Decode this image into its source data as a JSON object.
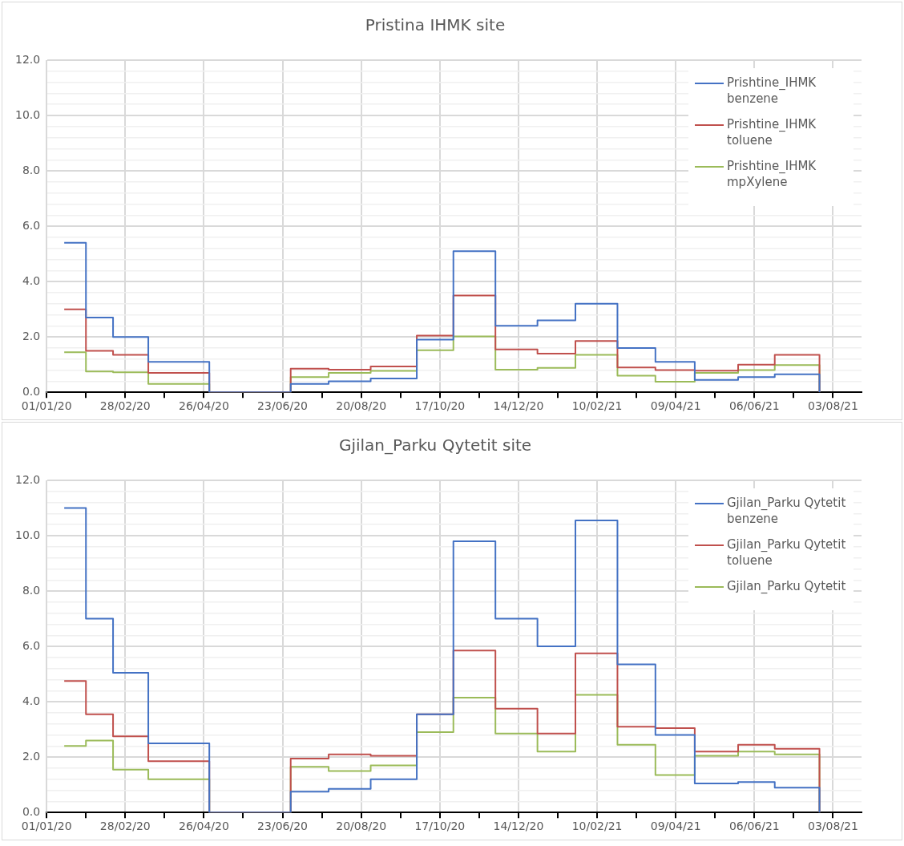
{
  "chart_data": [
    {
      "type": "step",
      "title": "Pristina IHMK site",
      "legend": "top right",
      "grid": true,
      "marker": "none",
      "x": [
        "2020-01-14",
        "2020-01-30",
        "2020-02-19",
        "2020-03-16",
        "2020-04-30",
        "2020-06-29",
        "2020-07-27",
        "2020-08-27",
        "2020-09-30",
        "2020-10-27",
        "2020-11-27",
        "2020-12-28",
        "2021-01-25",
        "2021-02-25",
        "2021-03-25",
        "2021-04-23",
        "2021-05-25",
        "2021-06-21",
        "2021-07-24"
      ],
      "series": [
        {
          "name": "Prishtine_IHMK benzene",
          "color": "#4472c4",
          "values": [
            5.4,
            2.7,
            2.0,
            1.1,
            0,
            0.3,
            0.4,
            0.5,
            1.9,
            5.1,
            2.4,
            2.6,
            3.2,
            1.6,
            1.1,
            0.45,
            0.55,
            0.65,
            0
          ]
        },
        {
          "name": "Prishtine_IHMK toluene",
          "color": "#c0504d",
          "values": [
            3.0,
            1.5,
            1.35,
            0.7,
            0,
            0.85,
            0.82,
            0.93,
            2.05,
            3.5,
            1.55,
            1.4,
            1.85,
            0.9,
            0.8,
            0.78,
            1.0,
            1.35,
            0
          ]
        },
        {
          "name": "Prishtine_IHMK mpXylene",
          "color": "#9bbb59",
          "values": [
            1.45,
            0.75,
            0.72,
            0.3,
            0,
            0.55,
            0.7,
            0.77,
            1.52,
            2.02,
            0.82,
            0.88,
            1.35,
            0.6,
            0.38,
            0.7,
            0.8,
            0.98,
            0
          ]
        }
      ],
      "xlim": [
        "2020-01-01",
        "2021-08-24"
      ],
      "xticks": [
        {
          "value": "2020-01-01",
          "label": "01/01/20"
        },
        {
          "value": "2020-01-30",
          "label": null
        },
        {
          "value": "2020-02-28",
          "label": "28/02/20"
        },
        {
          "value": "2020-03-28",
          "label": null
        },
        {
          "value": "2020-04-26",
          "label": "26/04/20"
        },
        {
          "value": "2020-05-25",
          "label": null
        },
        {
          "value": "2020-06-23",
          "label": "23/06/20"
        },
        {
          "value": "2020-07-22",
          "label": null
        },
        {
          "value": "2020-08-20",
          "label": "20/08/20"
        },
        {
          "value": "2020-09-18",
          "label": null
        },
        {
          "value": "2020-10-17",
          "label": "17/10/20"
        },
        {
          "value": "2020-11-15",
          "label": null
        },
        {
          "value": "2020-12-14",
          "label": "14/12/20"
        },
        {
          "value": "2021-01-12",
          "label": null
        },
        {
          "value": "2021-02-10",
          "label": "10/02/21"
        },
        {
          "value": "2021-03-11",
          "label": null
        },
        {
          "value": "2021-04-09",
          "label": "09/04/21"
        },
        {
          "value": "2021-05-08",
          "label": null
        },
        {
          "value": "2021-06-06",
          "label": "06/06/21"
        },
        {
          "value": "2021-07-05",
          "label": null
        },
        {
          "value": "2021-08-03",
          "label": "03/08/21"
        }
      ],
      "ylim": [
        0,
        12
      ],
      "yticks": [
        {
          "value": 0,
          "label": "0.0"
        },
        {
          "value": 0.4,
          "label": null
        },
        {
          "value": 0.8,
          "label": null
        },
        {
          "value": 1.2,
          "label": null
        },
        {
          "value": 1.6,
          "label": null
        },
        {
          "value": 2,
          "label": "2.0"
        },
        {
          "value": 2.4,
          "label": null
        },
        {
          "value": 2.8,
          "label": null
        },
        {
          "value": 3.2,
          "label": null
        },
        {
          "value": 3.6,
          "label": null
        },
        {
          "value": 4,
          "label": "4.0"
        },
        {
          "value": 4.4,
          "label": null
        },
        {
          "value": 4.8,
          "label": null
        },
        {
          "value": 5.2,
          "label": null
        },
        {
          "value": 5.6,
          "label": null
        },
        {
          "value": 6,
          "label": "6.0"
        },
        {
          "value": 6.4,
          "label": null
        },
        {
          "value": 6.8,
          "label": null
        },
        {
          "value": 7.2,
          "label": null
        },
        {
          "value": 7.6,
          "label": null
        },
        {
          "value": 8,
          "label": "8.0"
        },
        {
          "value": 8.4,
          "label": null
        },
        {
          "value": 8.8,
          "label": null
        },
        {
          "value": 9.2,
          "label": null
        },
        {
          "value": 9.6,
          "label": null
        },
        {
          "value": 10,
          "label": "10.0"
        },
        {
          "value": 10.4,
          "label": null
        },
        {
          "value": 10.8,
          "label": null
        },
        {
          "value": 11.2,
          "label": null
        },
        {
          "value": 11.6,
          "label": null
        },
        {
          "value": 12,
          "label": "12.0"
        }
      ]
    },
    {
      "type": "step",
      "title": "Gjilan_Parku Qytetit site",
      "legend": "top right",
      "grid": true,
      "marker": "none",
      "x": [
        "2020-01-14",
        "2020-01-30",
        "2020-02-19",
        "2020-03-16",
        "2020-04-30",
        "2020-06-29",
        "2020-07-27",
        "2020-08-27",
        "2020-09-30",
        "2020-10-27",
        "2020-11-27",
        "2020-12-28",
        "2021-01-25",
        "2021-02-25",
        "2021-03-25",
        "2021-04-23",
        "2021-05-25",
        "2021-06-21",
        "2021-07-24"
      ],
      "series": [
        {
          "name": "Gjilan_Parku Qytetit benzene",
          "color": "#4472c4",
          "values": [
            11.0,
            7.0,
            5.05,
            2.5,
            0,
            0.75,
            0.85,
            1.2,
            3.55,
            9.8,
            7.0,
            6.0,
            10.55,
            5.35,
            2.8,
            1.05,
            1.1,
            0.9,
            0
          ]
        },
        {
          "name": "Gjilan_Parku Qytetit toluene",
          "color": "#c0504d",
          "values": [
            4.75,
            3.55,
            2.75,
            1.85,
            0,
            1.95,
            2.1,
            2.05,
            3.55,
            5.85,
            3.75,
            2.85,
            5.75,
            3.1,
            3.05,
            2.2,
            2.45,
            2.3,
            0
          ]
        },
        {
          "name": "Gjilan_Parku Qytetit",
          "color": "#9bbb59",
          "values": [
            2.4,
            2.6,
            1.55,
            1.2,
            0,
            1.65,
            1.5,
            1.7,
            2.9,
            4.15,
            2.85,
            2.2,
            4.25,
            2.45,
            1.35,
            2.05,
            2.2,
            2.1,
            0
          ]
        }
      ],
      "xlim": [
        "2020-01-01",
        "2021-08-24"
      ],
      "xticks": [
        {
          "value": "2020-01-01",
          "label": "01/01/20"
        },
        {
          "value": "2020-01-30",
          "label": null
        },
        {
          "value": "2020-02-28",
          "label": "28/02/20"
        },
        {
          "value": "2020-03-28",
          "label": null
        },
        {
          "value": "2020-04-26",
          "label": "26/04/20"
        },
        {
          "value": "2020-05-25",
          "label": null
        },
        {
          "value": "2020-06-23",
          "label": "23/06/20"
        },
        {
          "value": "2020-07-22",
          "label": null
        },
        {
          "value": "2020-08-20",
          "label": "20/08/20"
        },
        {
          "value": "2020-09-18",
          "label": null
        },
        {
          "value": "2020-10-17",
          "label": "17/10/20"
        },
        {
          "value": "2020-11-15",
          "label": null
        },
        {
          "value": "2020-12-14",
          "label": "14/12/20"
        },
        {
          "value": "2021-01-12",
          "label": null
        },
        {
          "value": "2021-02-10",
          "label": "10/02/21"
        },
        {
          "value": "2021-03-11",
          "label": null
        },
        {
          "value": "2021-04-09",
          "label": "09/04/21"
        },
        {
          "value": "2021-05-08",
          "label": null
        },
        {
          "value": "2021-06-06",
          "label": "06/06/21"
        },
        {
          "value": "2021-07-05",
          "label": null
        },
        {
          "value": "2021-08-03",
          "label": "03/08/21"
        }
      ],
      "ylim": [
        0,
        12
      ],
      "yticks": [
        {
          "value": 0,
          "label": "0.0"
        },
        {
          "value": 0.4,
          "label": null
        },
        {
          "value": 0.8,
          "label": null
        },
        {
          "value": 1.2,
          "label": null
        },
        {
          "value": 1.6,
          "label": null
        },
        {
          "value": 2,
          "label": "2.0"
        },
        {
          "value": 2.4,
          "label": null
        },
        {
          "value": 2.8,
          "label": null
        },
        {
          "value": 3.2,
          "label": null
        },
        {
          "value": 3.6,
          "label": null
        },
        {
          "value": 4,
          "label": "4.0"
        },
        {
          "value": 4.4,
          "label": null
        },
        {
          "value": 4.8,
          "label": null
        },
        {
          "value": 5.2,
          "label": null
        },
        {
          "value": 5.6,
          "label": null
        },
        {
          "value": 6,
          "label": "6.0"
        },
        {
          "value": 6.4,
          "label": null
        },
        {
          "value": 6.8,
          "label": null
        },
        {
          "value": 7.2,
          "label": null
        },
        {
          "value": 7.6,
          "label": null
        },
        {
          "value": 8,
          "label": "8.0"
        },
        {
          "value": 8.4,
          "label": null
        },
        {
          "value": 8.8,
          "label": null
        },
        {
          "value": 9.2,
          "label": null
        },
        {
          "value": 9.6,
          "label": null
        },
        {
          "value": 10,
          "label": "10.0"
        },
        {
          "value": 10.4,
          "label": null
        },
        {
          "value": 10.8,
          "label": null
        },
        {
          "value": 11.2,
          "label": null
        },
        {
          "value": 11.6,
          "label": null
        },
        {
          "value": 12,
          "label": "12.0"
        }
      ]
    }
  ]
}
